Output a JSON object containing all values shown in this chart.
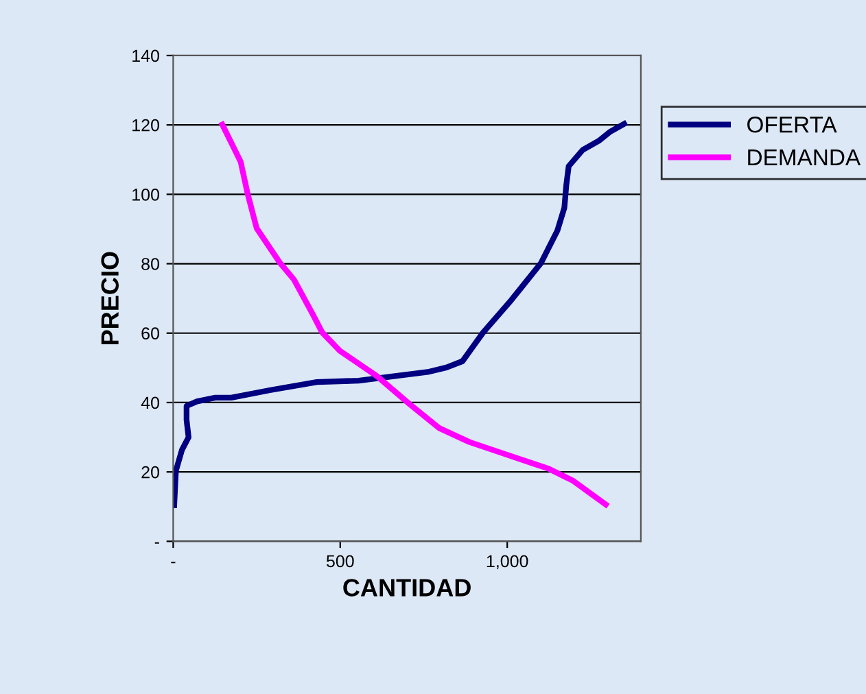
{
  "chart_data": {
    "type": "line",
    "xlabel": "CANTIDAD",
    "ylabel": "PRECIO",
    "xlim": [
      0,
      1400
    ],
    "xticks": [
      {
        "value": 0,
        "label": "-"
      },
      500,
      {
        "value": 1000,
        "label": "1,000"
      }
    ],
    "ylim": [
      0,
      140
    ],
    "yticks": [
      {
        "value": 0,
        "label": "-"
      },
      20,
      40,
      60,
      80,
      100,
      120,
      140
    ],
    "grid": "y",
    "legend": "right",
    "marker": "none",
    "line_style": "solid",
    "series": [
      {
        "name": "OFERTA",
        "color": "#000080",
        "x": [
          3,
          8,
          26,
          46,
          40,
          40,
          71,
          126,
          174,
          292,
          430,
          555,
          652,
          762,
          818,
          866,
          928,
          1012,
          1101,
          1150,
          1171,
          1177,
          1184,
          1226,
          1274,
          1309,
          1350
        ],
        "values": [
          10.4,
          20.3,
          26.3,
          30,
          35,
          39,
          40.3,
          41.4,
          41.4,
          43.6,
          45.9,
          46.3,
          47.5,
          48.8,
          50.1,
          51.9,
          60.2,
          69.5,
          80.2,
          89.5,
          96.1,
          102.8,
          108.1,
          112.8,
          115.4,
          118.1,
          120.3
        ]
      },
      {
        "name": "DEMANDA",
        "color": "#ff00ff",
        "x": [
          147,
          202,
          223,
          250,
          320,
          361,
          417,
          446,
          499,
          610,
          707,
          797,
          887,
          998,
          1081,
          1122,
          1198,
          1295
        ],
        "values": [
          120.1,
          109.4,
          100.1,
          90.2,
          80.2,
          75.5,
          65.6,
          60.2,
          54.9,
          47.6,
          39.6,
          32.6,
          28.6,
          25.0,
          22.3,
          21.0,
          17.4,
          10.6
        ]
      }
    ]
  }
}
